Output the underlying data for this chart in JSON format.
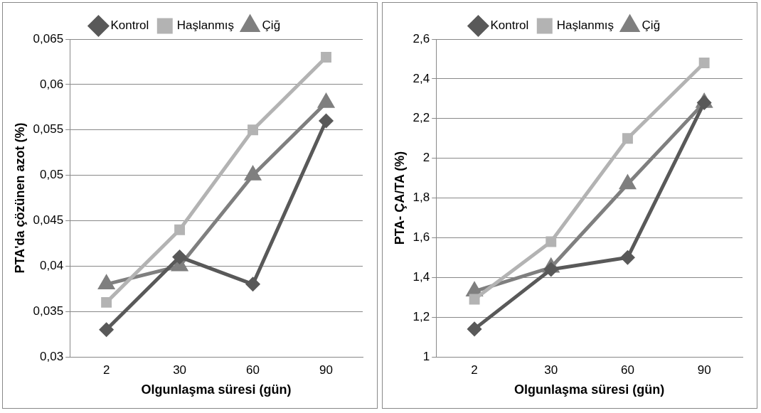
{
  "chart_data": [
    {
      "type": "line",
      "xlabel": "Olgunlaşma süresi (gün)",
      "ylabel": "PTA'da çözünen azot (%)",
      "categories": [
        "2",
        "30",
        "60",
        "90"
      ],
      "series": [
        {
          "name": "Kontrol",
          "color": "#595959",
          "marker": "diamond",
          "values": [
            0.033,
            0.041,
            0.038,
            0.056
          ]
        },
        {
          "name": "Haşlanmış",
          "color": "#b3b3b3",
          "marker": "square",
          "values": [
            0.036,
            0.044,
            0.055,
            0.063
          ]
        },
        {
          "name": "Çiğ",
          "color": "#7f7f7f",
          "marker": "triangle",
          "values": [
            0.038,
            0.04,
            0.05,
            0.058
          ]
        }
      ],
      "ylim": [
        0.03,
        0.065
      ],
      "yticks": [
        {
          "value": 0.03,
          "label": "0,03"
        },
        {
          "value": 0.035,
          "label": "0,035"
        },
        {
          "value": 0.04,
          "label": "0,04"
        },
        {
          "value": 0.045,
          "label": "0,045"
        },
        {
          "value": 0.05,
          "label": "0,05"
        },
        {
          "value": 0.055,
          "label": "0,055"
        },
        {
          "value": 0.06,
          "label": "0,06"
        },
        {
          "value": 0.065,
          "label": "0,065"
        }
      ],
      "grid": "y",
      "legend": "top"
    },
    {
      "type": "line",
      "xlabel": "Olgunlaşma süresi (gün)",
      "ylabel": "PTA- ÇA/TA (%)",
      "categories": [
        "2",
        "30",
        "60",
        "90"
      ],
      "series": [
        {
          "name": "Kontrol",
          "color": "#595959",
          "marker": "diamond",
          "values": [
            1.14,
            1.44,
            1.5,
            2.28
          ]
        },
        {
          "name": "Haşlanmış",
          "color": "#b3b3b3",
          "marker": "square",
          "values": [
            1.29,
            1.58,
            2.1,
            2.48
          ]
        },
        {
          "name": "Çiğ",
          "color": "#7f7f7f",
          "marker": "triangle",
          "values": [
            1.33,
            1.45,
            1.87,
            2.28
          ]
        }
      ],
      "ylim": [
        1,
        2.6
      ],
      "yticks": [
        {
          "value": 1,
          "label": "1"
        },
        {
          "value": 1.2,
          "label": "1,2"
        },
        {
          "value": 1.4,
          "label": "1,4"
        },
        {
          "value": 1.6,
          "label": "1,6"
        },
        {
          "value": 1.8,
          "label": "1,8"
        },
        {
          "value": 2,
          "label": "2"
        },
        {
          "value": 2.2,
          "label": "2,2"
        },
        {
          "value": 2.4,
          "label": "2,4"
        },
        {
          "value": 2.6,
          "label": "2,6"
        }
      ],
      "grid": "y",
      "legend": "top"
    }
  ]
}
